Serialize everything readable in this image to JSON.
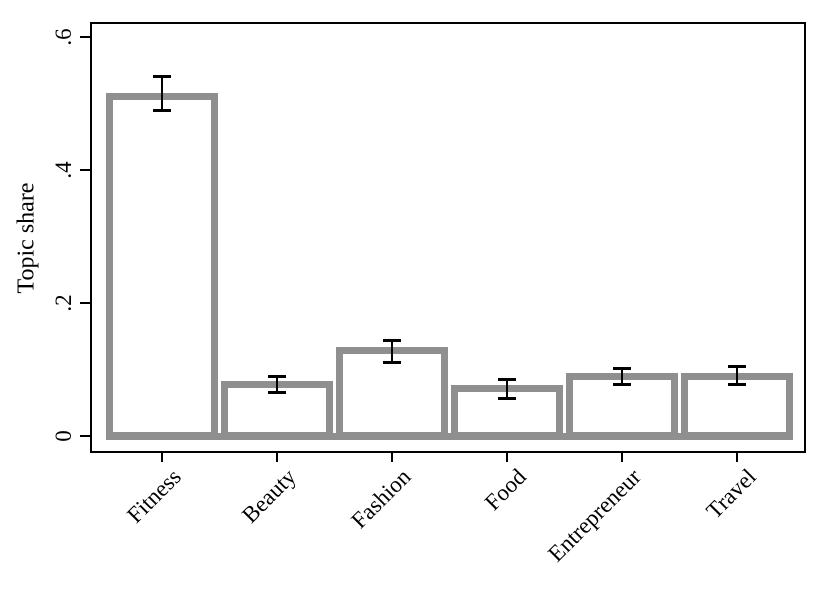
{
  "chart_data": {
    "type": "bar",
    "title": "",
    "ylabel": "Topic share",
    "xlabel": "",
    "categories": [
      "Fitness",
      "Beauty",
      "Fashion",
      "Food",
      "Entrepreneur",
      "Travel"
    ],
    "values": [
      0.51,
      0.077,
      0.128,
      0.071,
      0.089,
      0.09
    ],
    "ci_low": [
      0.49,
      0.065,
      0.111,
      0.057,
      0.077,
      0.077
    ],
    "ci_high": [
      0.54,
      0.089,
      0.144,
      0.085,
      0.102,
      0.104
    ],
    "yticks": [
      0,
      0.2,
      0.4,
      0.6
    ],
    "ytick_labels": [
      "0",
      ".2",
      ".4",
      ".6"
    ],
    "ylim": [
      0,
      0.62
    ],
    "grid": false,
    "legend": "none",
    "x_label_angle_deg": 45,
    "y_tick_label_rotation_deg": 90,
    "bar_fill_color": "#ffffff",
    "bar_outline_color": "#8f8f8f",
    "error_bar_color": "#000000",
    "axis_color": "#000000",
    "background_color": "#ffffff"
  }
}
